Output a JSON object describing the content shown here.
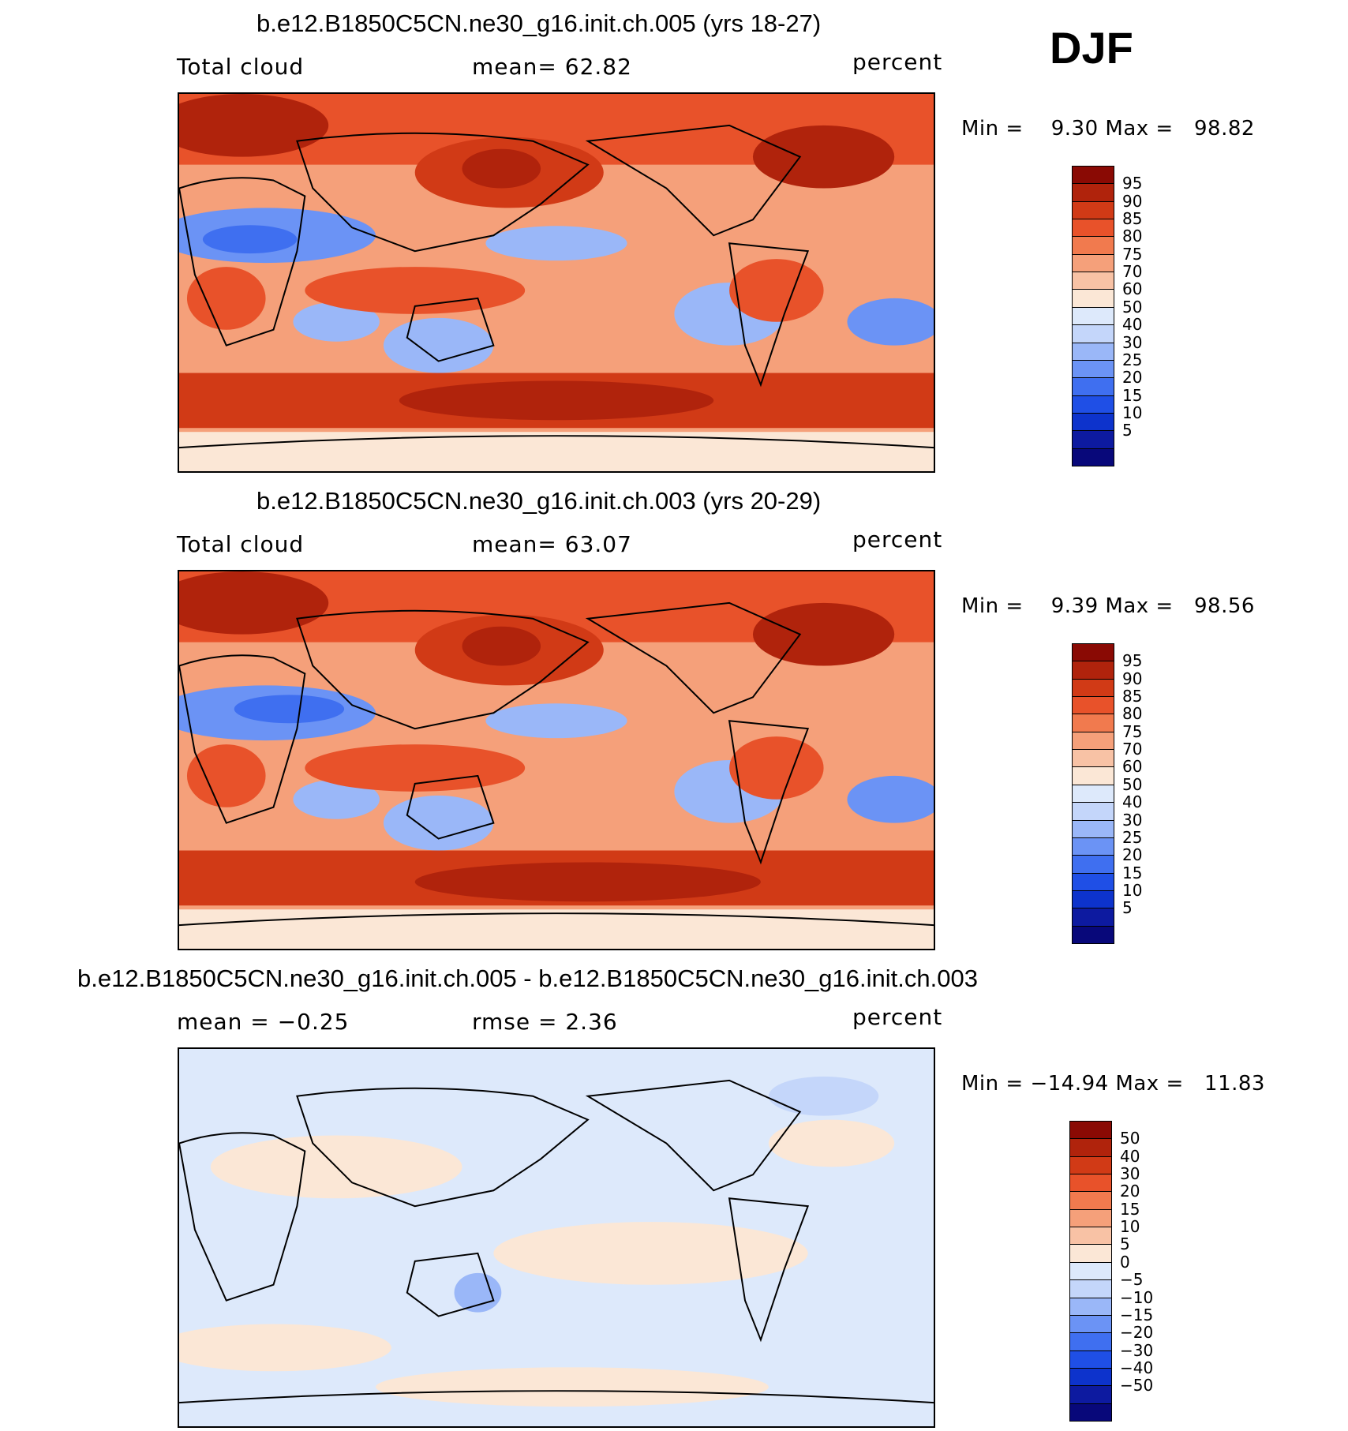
{
  "season": "DJF",
  "colors": {
    "abs": [
      "#08087a",
      "#0d1aa0",
      "#0d33cc",
      "#1f4fe6",
      "#3f6ff0",
      "#6b93f5",
      "#9ab7f8",
      "#c4d6fa",
      "#dde9fb",
      "#fbe7d6",
      "#f8c2a5",
      "#f5a07a",
      "#f17a4e",
      "#e8522a",
      "#d13a16",
      "#b0230c",
      "#8a0a04"
    ],
    "diff": [
      "#08087a",
      "#0d1aa0",
      "#0d33cc",
      "#1f4fe6",
      "#3f6ff0",
      "#6b93f5",
      "#9ab7f8",
      "#c4d6fa",
      "#dde9fb",
      "#fbe7d6",
      "#f8c2a5",
      "#f5a07a",
      "#f17a4e",
      "#e8522a",
      "#d13a16",
      "#b0230c",
      "#8a0a04"
    ]
  },
  "panels": [
    {
      "title": "b.e12.B1850C5CN.ne30_g16.init.ch.005 (yrs 18-27)",
      "left_label": "Total cloud",
      "center_label": "mean=   62.82",
      "right_label": "percent",
      "minmax": "Min =    9.30 Max =   98.82",
      "colorbar_labels": [
        "95",
        "90",
        "85",
        "80",
        "75",
        "70",
        "60",
        "50",
        "40",
        "30",
        "25",
        "20",
        "15",
        "10",
        "5"
      ]
    },
    {
      "title": "b.e12.B1850C5CN.ne30_g16.init.ch.003 (yrs 20-29)",
      "left_label": "Total cloud",
      "center_label": "mean=   63.07",
      "right_label": "percent",
      "minmax": "Min =    9.39 Max =   98.56",
      "colorbar_labels": [
        "95",
        "90",
        "85",
        "80",
        "75",
        "70",
        "60",
        "50",
        "40",
        "30",
        "25",
        "20",
        "15",
        "10",
        "5"
      ]
    },
    {
      "title": "b.e12.B1850C5CN.ne30_g16.init.ch.005 - b.e12.B1850C5CN.ne30_g16.init.ch.003",
      "left_label": "mean =  −0.25",
      "center_label": "rmse =    2.36",
      "right_label": "percent",
      "minmax": "Min = −14.94 Max =   11.83",
      "colorbar_labels": [
        "50",
        "40",
        "30",
        "20",
        "15",
        "10",
        "5",
        "0",
        "−5",
        "−10",
        "−15",
        "−20",
        "−30",
        "−40",
        "−50"
      ]
    }
  ]
}
